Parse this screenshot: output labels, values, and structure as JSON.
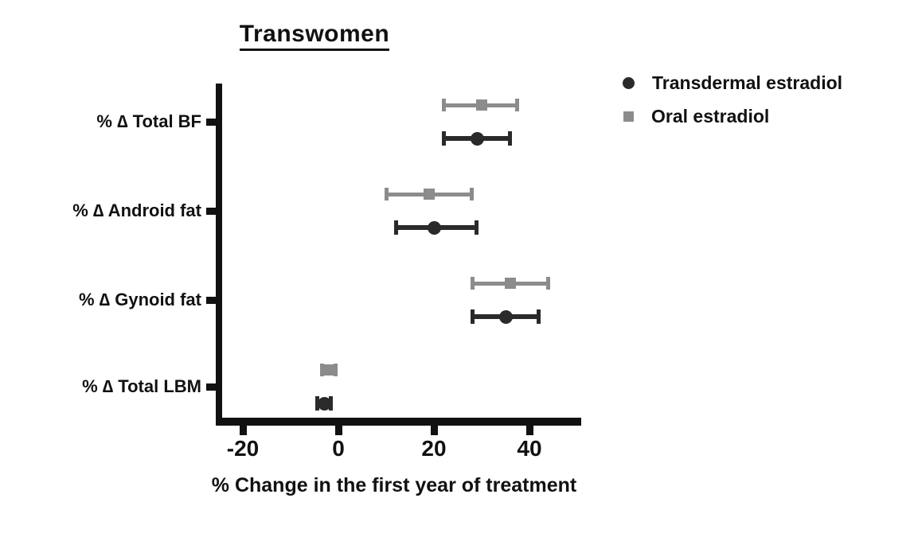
{
  "title": "Transwomen",
  "legend": [
    {
      "label": "Transdermal estradiol",
      "marker": "circle",
      "color": "#2a2a2a"
    },
    {
      "label": "Oral estradiol",
      "marker": "square",
      "color": "#8c8c8c"
    }
  ],
  "colors": {
    "axis": "#111111",
    "text": "#111111",
    "transdermal": "#2a2a2a",
    "oral": "#8c8c8c"
  },
  "chart_data": {
    "type": "scatter",
    "subtype": "forest-plot-with-error-bars",
    "orientation": "horizontal",
    "title": "Transwomen",
    "xlabel": "% Change in the first year of treatment",
    "ylabel": "",
    "xlim": [
      -25,
      51
    ],
    "x_ticks": [
      -20,
      0,
      20,
      40
    ],
    "grid": false,
    "legend_position": "top-right",
    "categories": [
      "% ∆ Total BF",
      "% ∆ Android fat",
      "% ∆ Gynoid fat",
      "% ∆ Total LBM"
    ],
    "series": [
      {
        "name": "Oral estradiol",
        "marker": "square",
        "color": "#8c8c8c",
        "values": [
          30,
          19,
          36,
          -2
        ],
        "ci_low": [
          22,
          10,
          28,
          -3.5
        ],
        "ci_high": [
          37.5,
          28,
          44,
          -0.5
        ]
      },
      {
        "name": "Transdermal estradiol",
        "marker": "circle",
        "color": "#2a2a2a",
        "values": [
          29,
          20,
          35,
          -3
        ],
        "ci_low": [
          22,
          12,
          28,
          -4.5
        ],
        "ci_high": [
          36,
          29,
          42,
          -1.5
        ]
      }
    ]
  }
}
